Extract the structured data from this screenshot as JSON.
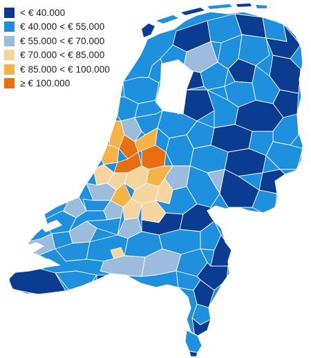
{
  "legend": {
    "items": [
      {
        "label": "< € 40.000",
        "color": "#0a3d91"
      },
      {
        "label": "€ 40.000 < € 55.000",
        "color": "#1e90dd"
      },
      {
        "label": "€ 55.000 < € 70.000",
        "color": "#9bbcdc"
      },
      {
        "label": "€ 70.000 < € 85.000",
        "color": "#f6d49d"
      },
      {
        "label": "€ 85.000 < € 100.000",
        "color": "#f5b246"
      },
      {
        "label": "≥ € 100.000",
        "color": "#e86f0f"
      }
    ]
  },
  "map": {
    "region": "Netherlands",
    "subdivision": "municipalities",
    "border_color": "#ffffff",
    "water_color": "#ffffff"
  }
}
